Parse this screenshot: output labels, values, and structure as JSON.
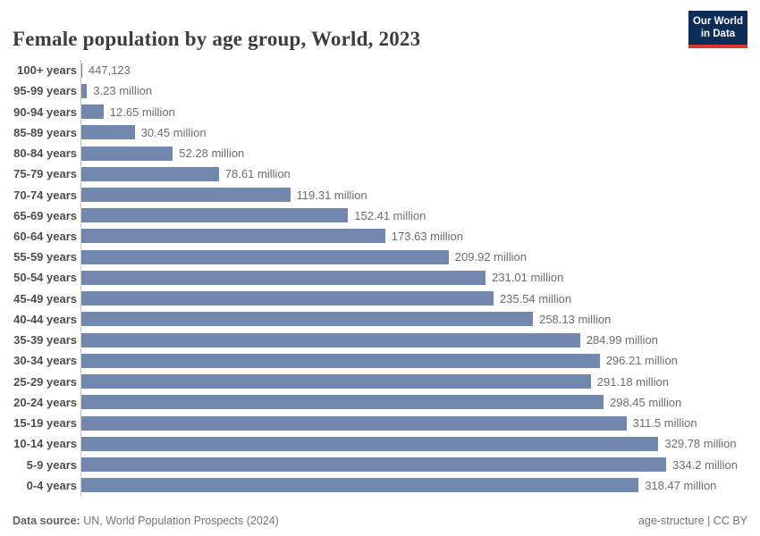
{
  "header": {
    "title": "Female population by age group, World, 2023",
    "logo": {
      "line1": "Our World",
      "line2": "in Data",
      "bg_color": "#0d2d59",
      "accent_color": "#d93a2b"
    }
  },
  "chart_data": {
    "type": "bar",
    "orientation": "horizontal",
    "title": "Female population by age group, World, 2023",
    "grid": false,
    "legend": false,
    "bar_color": "#7388ae",
    "xlim_millions": [
      0,
      334.2
    ],
    "categories": [
      "100+ years",
      "95-99 years",
      "90-94 years",
      "85-89 years",
      "80-84 years",
      "75-79 years",
      "70-74 years",
      "65-69 years",
      "60-64 years",
      "55-59 years",
      "50-54 years",
      "45-49 years",
      "40-44 years",
      "35-39 years",
      "30-34 years",
      "25-29 years",
      "20-24 years",
      "15-19 years",
      "10-14 years",
      "5-9 years",
      "0-4 years"
    ],
    "values_millions": [
      0.447123,
      3.23,
      12.65,
      30.45,
      52.28,
      78.61,
      119.31,
      152.41,
      173.63,
      209.92,
      231.01,
      235.54,
      258.13,
      284.99,
      296.21,
      291.18,
      298.45,
      311.5,
      329.78,
      334.2,
      318.47
    ],
    "value_labels": [
      "447,123",
      "3.23 million",
      "12.65 million",
      "30.45 million",
      "52.28 million",
      "78.61 million",
      "119.31 million",
      "152.41 million",
      "173.63 million",
      "209.92 million",
      "231.01 million",
      "235.54 million",
      "258.13 million",
      "284.99 million",
      "296.21 million",
      "291.18 million",
      "298.45 million",
      "311.5 million",
      "329.78 million",
      "334.2 million",
      "318.47 million"
    ]
  },
  "footer": {
    "source_label": "Data source:",
    "source_text": "UN, World Population Prospects (2024)",
    "note_right": "age-structure | CC BY"
  }
}
